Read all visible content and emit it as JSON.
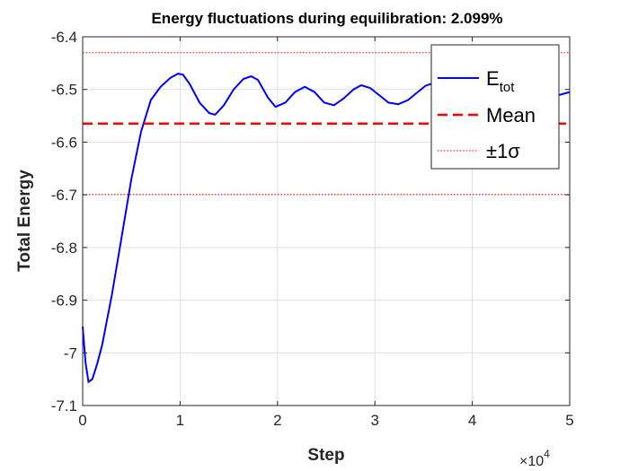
{
  "chart_data": {
    "type": "line",
    "title": "Energy fluctuations during equilibration: 2.099%",
    "xlabel": "Step",
    "ylabel": "Total Energy",
    "xlim": [
      0,
      50000
    ],
    "ylim": [
      -7.1,
      -6.4
    ],
    "x_ticks": [
      0,
      10000,
      20000,
      30000,
      40000,
      50000
    ],
    "x_tick_labels": [
      "0",
      "1",
      "2",
      "3",
      "4",
      "5"
    ],
    "x_exponent_label": {
      "base": "×10",
      "exp": "4"
    },
    "y_ticks": [
      -7.1,
      -7.0,
      -6.9,
      -6.8,
      -6.7,
      -6.6,
      -6.5,
      -6.4
    ],
    "y_tick_labels": [
      "-7.1",
      "-7",
      "-6.9",
      "-6.8",
      "-6.7",
      "-6.6",
      "-6.5",
      "-6.4"
    ],
    "grid": true,
    "legend_position": "top-right",
    "series": [
      {
        "name": "E_tot",
        "legend_main": "E",
        "legend_sub": "tot",
        "style": "solid",
        "color": "#0000ff",
        "x": [
          0,
          300,
          600,
          1000,
          1500,
          2000,
          3000,
          4000,
          5000,
          6000,
          7000,
          8000,
          9000,
          9800,
          10300,
          11000,
          12000,
          13000,
          13600,
          14500,
          15500,
          16500,
          17300,
          18000,
          19000,
          19800,
          20800,
          21800,
          22800,
          23800,
          24800,
          25800,
          26800,
          27800,
          28600,
          29500,
          30400,
          31400,
          32400,
          33400,
          34400,
          35200,
          36000,
          37000,
          38000,
          39000,
          40000,
          41000,
          42000,
          43000,
          44000,
          45000,
          46000,
          47000,
          48000,
          49000,
          50000
        ],
        "y": [
          -6.95,
          -7.02,
          -7.055,
          -7.05,
          -7.02,
          -6.985,
          -6.89,
          -6.78,
          -6.67,
          -6.58,
          -6.52,
          -6.495,
          -6.478,
          -6.47,
          -6.472,
          -6.49,
          -6.525,
          -6.545,
          -6.548,
          -6.53,
          -6.5,
          -6.48,
          -6.475,
          -6.482,
          -6.515,
          -6.533,
          -6.525,
          -6.505,
          -6.495,
          -6.505,
          -6.525,
          -6.53,
          -6.517,
          -6.5,
          -6.492,
          -6.497,
          -6.51,
          -6.525,
          -6.528,
          -6.52,
          -6.505,
          -6.493,
          -6.488,
          -6.49,
          -6.5,
          -6.515,
          -6.53,
          -6.54,
          -6.543,
          -6.54,
          -6.535,
          -6.53,
          -6.525,
          -6.52,
          -6.515,
          -6.51,
          -6.505
        ]
      },
      {
        "name": "Mean",
        "style": "dashed",
        "color": "#ff0000",
        "x": [
          0,
          50000
        ],
        "y": [
          -6.5648,
          -6.5648
        ]
      },
      {
        "name": "±1σ",
        "style": "dotted",
        "color": "#ff0000",
        "x": [
          0,
          50000
        ],
        "y": [
          -6.4302,
          -6.4302
        ]
      },
      {
        "name": "-1σ",
        "show_in_legend": false,
        "style": "dotted",
        "color": "#ff0000",
        "x": [
          0,
          50000
        ],
        "y": [
          -6.6995,
          -6.6995
        ]
      }
    ]
  }
}
